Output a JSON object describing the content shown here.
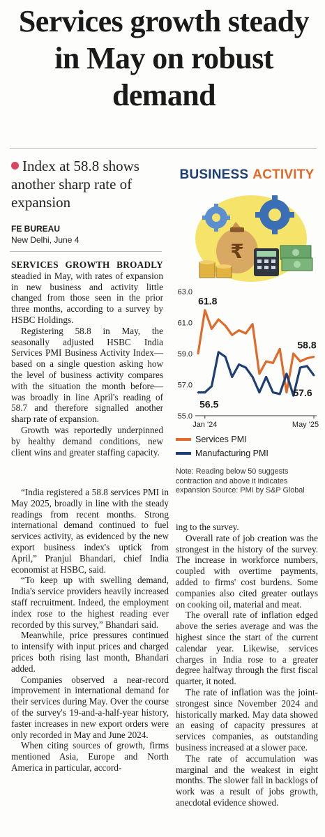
{
  "article": {
    "headline": "Services growth steady in May on robust demand",
    "deck": "Index at 58.8 shows another sharp rate of expansion",
    "source": "FE BUREAU",
    "dateline": "New Delhi, June 4",
    "lead_caps": "SERVICES GROWTH BROADLY",
    "paragraphs": [
      " steadied in May, with rates of expansion in new business and activity little changed from those seen in the prior three months, according to a survey by HSBC Holdings.",
      "Registering 58.8 in May, the seasonally adjusted HSBC India Services PMI Business Activity Index—based on a single question asking how the level of business activity compares with the situation the month before—was broadly in line April's reading of 58.7 and therefore signalled another sharp rate of expansion.",
      "Growth was reportedly underpinned by healthy demand conditions, new client wins and greater staffing capacity.",
      "“India registered a 58.8 services PMI in May 2025, broadly in line with the steady readings from recent months. Strong international demand continued to fuel services activity, as evidenced by the new export business index's uptick from April,” Pranjul Bhandari, chief India economist at HSBC, said.",
      "“To keep up with swelling demand, India's service providers heavily increased staff recruitment. Indeed, the employment index rose to the highest reading ever recorded by this survey,” Bhandari said.",
      "Meanwhile, price pressures continued to intensify with input prices and charged prices both rising last month, Bhandari added.",
      "Companies observed a near-record improvement in international demand for their services during May. Over the course of the survey's 19-and-a-half-year history, faster increases in new export orders were only recorded in May and June 2024.",
      "When citing sources of growth, firms mentioned Asia, Europe and North America in particular, accord-",
      "ing to the survey.",
      "Overall rate of job creation was the strongest in the history of the survey. The increase in workforce numbers, coupled with overtime payments, added to firms' cost burdens. Some companies also cited greater outlays on cooking oil, material and meat.",
      "The overall rate of inflation edged above the series average and was the highest since the start of the current calendar year. Likewise, services charges in India rose to a greater degree halfway through the first fiscal quarter, it noted.",
      "The rate of inflation was the joint-strongest since November 2024 and historically marked. May data showed an easing of capacity pressures at services companies, as outstanding business increased at a slower pace.",
      "The rate of accumulation was marginal and the weakest in eight months. The slower fall in backlogs of work was a result of jobs growth, anecdotal evidence showed."
    ]
  },
  "graphic": {
    "badge_word1": "BUSINESS",
    "badge_word2": "ACTIVITY",
    "icons": [
      "money-bag-icon",
      "gear-icon",
      "calculator-icon",
      "cash-stack-icon",
      "coin-stack-icon"
    ],
    "note": "Note: Reading below 50 suggests contraction and above it indicates expansion Source: PMI by S&P Global"
  },
  "chart_data": {
    "type": "line",
    "title": "",
    "xlabel": "",
    "ylabel": "",
    "x_tick_labels": [
      "Jan '24",
      "May '25"
    ],
    "y_ticks": [
      55.0,
      57.0,
      59.0,
      61.0,
      63.0
    ],
    "y_tick_labels": [
      "55.0",
      "57.0",
      "59.0",
      "61.0",
      "63.0"
    ],
    "ylim": [
      55.0,
      63.0
    ],
    "x": [
      "Dec '23",
      "Jan '24",
      "Feb '24",
      "Mar '24",
      "Apr '24",
      "May '24",
      "Jun '24",
      "Jul '24",
      "Aug '24",
      "Sep '24",
      "Oct '24",
      "Nov '24",
      "Dec '24",
      "Jan '25",
      "Feb '25",
      "Mar '25",
      "Apr '25",
      "May '25"
    ],
    "series": [
      {
        "name": "Services PMI",
        "color": "#e06a2a",
        "values": [
          59.0,
          61.8,
          60.6,
          61.2,
          60.8,
          60.2,
          60.5,
          60.3,
          60.9,
          57.7,
          58.5,
          58.4,
          59.3,
          56.5,
          59.0,
          58.5,
          58.7,
          58.8
        ]
      },
      {
        "name": "Manufacturing PMI",
        "color": "#1e3f73",
        "values": [
          56.5,
          56.5,
          56.9,
          59.1,
          58.8,
          57.5,
          58.3,
          58.1,
          57.5,
          56.5,
          57.5,
          56.5,
          56.4,
          57.7,
          56.3,
          58.1,
          58.2,
          57.6
        ]
      }
    ],
    "data_labels": [
      {
        "series": "Services PMI",
        "text": "61.8"
      },
      {
        "series": "Services PMI",
        "text": "58.8"
      },
      {
        "series": "Manufacturing PMI",
        "text": "56.5"
      },
      {
        "series": "Manufacturing PMI",
        "text": "57.6"
      }
    ],
    "grid": false,
    "legend": "bottom"
  }
}
